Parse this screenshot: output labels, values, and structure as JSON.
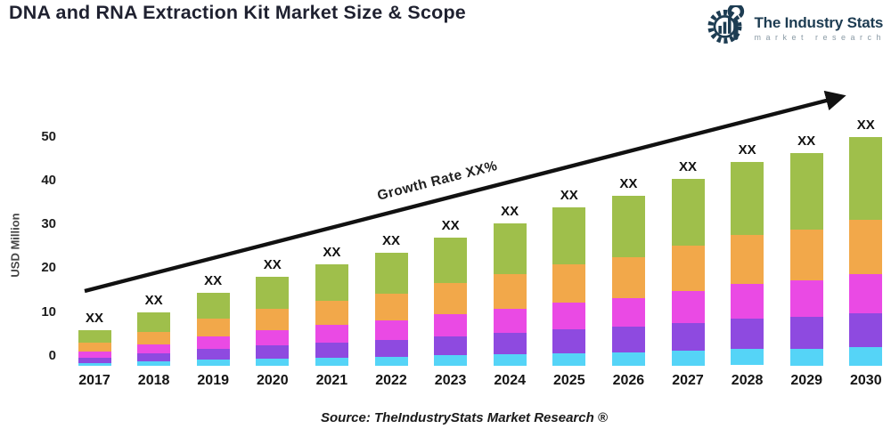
{
  "header": {
    "title": "DNA and RNA Extraction Kit Market Size & Scope",
    "logo": {
      "name": "The Industry Stats",
      "subtitle": "market research",
      "brand_color": "#1d3c52",
      "subtitle_color": "#8a9aa5"
    }
  },
  "footer": {
    "source": "Source: TheIndustryStats Market Research ®"
  },
  "chart_data": {
    "type": "bar",
    "stacked": true,
    "title": "DNA and RNA Extraction Kit Market Size & Scope",
    "xlabel": "",
    "ylabel": "USD Million",
    "ylim": [
      0,
      50
    ],
    "yticks": [
      0,
      10,
      20,
      30,
      40,
      50
    ],
    "grid": false,
    "legend": "none",
    "bar_value_label": "XX",
    "categories": [
      "2017",
      "2018",
      "2019",
      "2020",
      "2021",
      "2022",
      "2023",
      "2024",
      "2025",
      "2026",
      "2027",
      "2028",
      "2029",
      "2030"
    ],
    "totals_estimated": [
      5.8,
      9.9,
      14.4,
      18.0,
      20.9,
      23.5,
      27.0,
      30.3,
      33.9,
      36.6,
      40.4,
      44.2,
      46.3,
      49.8
    ],
    "series": [
      {
        "name": "segment-1-cyan",
        "color": "#55d4f7",
        "values": [
          0.5,
          0.8,
          1.2,
          1.4,
          1.7,
          1.9,
          2.2,
          2.4,
          2.7,
          2.9,
          3.2,
          3.5,
          3.7,
          4.0
        ]
      },
      {
        "name": "segment-2-purple",
        "color": "#8e4ae0",
        "values": [
          0.9,
          1.5,
          2.2,
          2.7,
          3.1,
          3.5,
          4.1,
          4.5,
          5.1,
          5.5,
          6.1,
          6.6,
          6.9,
          7.5
        ]
      },
      {
        "name": "segment-3-magenta",
        "color": "#ea4ae4",
        "values": [
          1.0,
          1.7,
          2.4,
          3.1,
          3.6,
          4.0,
          4.6,
          5.2,
          5.8,
          6.2,
          6.9,
          7.5,
          7.9,
          8.5
        ]
      },
      {
        "name": "segment-4-orange",
        "color": "#f2a84a",
        "values": [
          1.4,
          2.4,
          3.5,
          4.3,
          5.0,
          5.6,
          6.5,
          7.3,
          8.1,
          8.8,
          9.7,
          10.6,
          11.1,
          12.0
        ]
      },
      {
        "name": "segment-5-green",
        "color": "#9fbf4b",
        "values": [
          2.1,
          3.6,
          5.2,
          6.5,
          7.5,
          8.5,
          9.7,
          10.9,
          12.2,
          13.2,
          14.5,
          15.9,
          16.7,
          17.9
        ]
      }
    ],
    "annotation": {
      "label": "Growth Rate XX%",
      "type": "trend-arrow",
      "color": "#111111"
    }
  }
}
